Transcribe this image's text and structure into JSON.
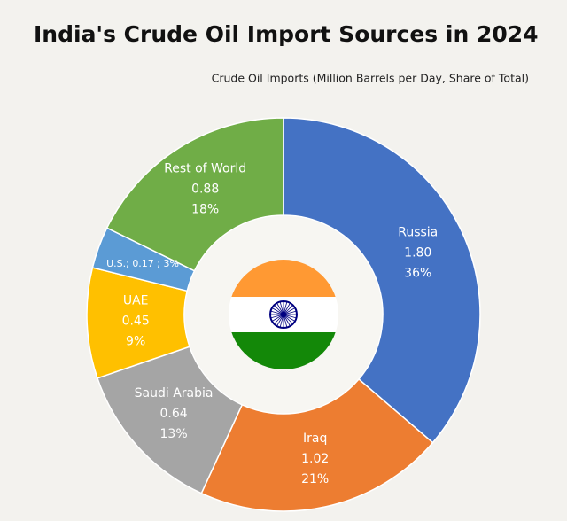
{
  "chart_data": {
    "type": "donut",
    "title": "India's Crude Oil Import Sources in 2024",
    "subtitle": "Crude Oil Imports (Million Barrels per Day, Share of Total)",
    "categories": [
      "Russia",
      "Iraq",
      "Saudi Arabia",
      "UAE",
      "U.S.",
      "Rest of World"
    ],
    "values": [
      1.8,
      1.02,
      0.64,
      0.45,
      0.17,
      0.88
    ],
    "value_labels": [
      "1.80",
      "1.02",
      "0.64",
      "0.45",
      "0.17",
      "0.88"
    ],
    "shares": [
      36,
      21,
      13,
      9,
      3,
      18
    ],
    "share_labels": [
      "36%",
      "21%",
      "13%",
      "9%",
      "3%",
      "18%"
    ],
    "colors": [
      "#4472c4",
      "#ed7d31",
      "#a5a5a5",
      "#ffc000",
      "#5b9bd5",
      "#70ad47"
    ],
    "inline_label_separators": [
      "; ",
      " ; "
    ],
    "inline_label_index": 4
  }
}
